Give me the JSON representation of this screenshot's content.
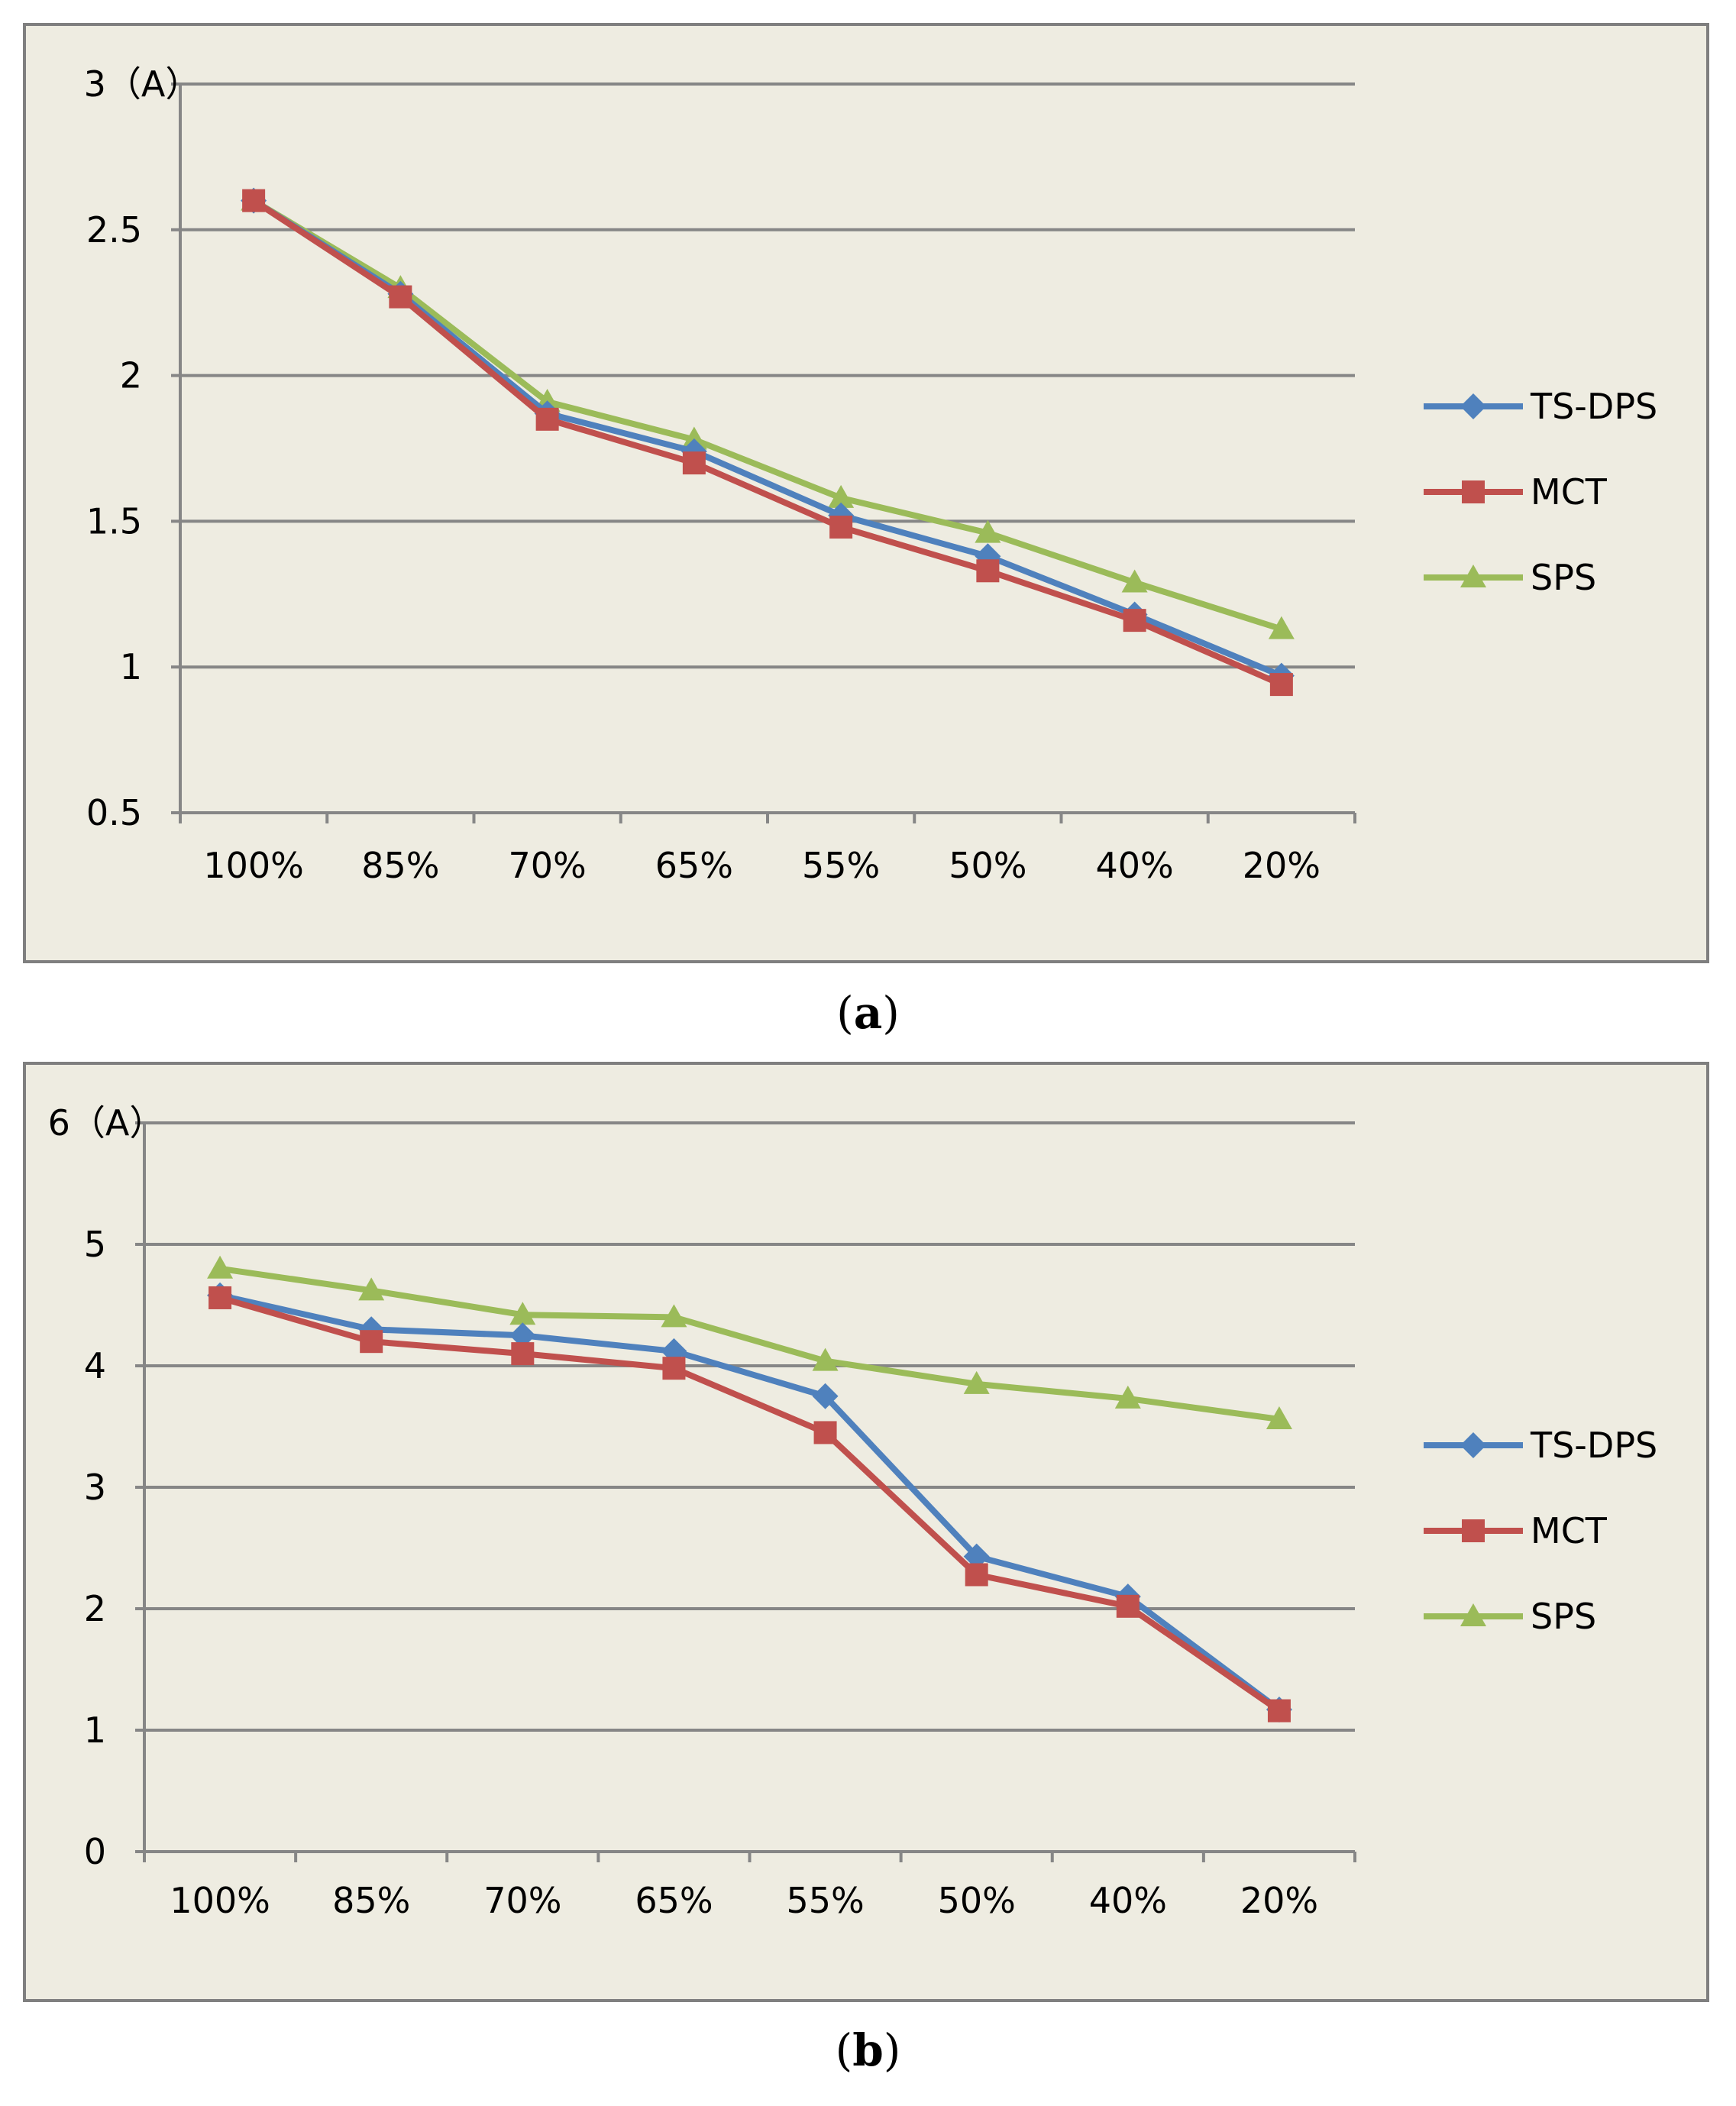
{
  "figure": {
    "panels": [
      {
        "caption_label": "a",
        "y_unit_label": "3（A）",
        "chart_data": {
          "type": "line",
          "categories": [
            "100%",
            "85%",
            "70%",
            "65%",
            "55%",
            "50%",
            "40%",
            "20%"
          ],
          "ylim": [
            0.5,
            3
          ],
          "yticks": [
            0.5,
            1,
            1.5,
            2,
            2.5
          ],
          "ytick_labels": [
            "0.5",
            "1",
            "1.5",
            "2",
            "2.5"
          ],
          "grid": true,
          "legend_position": "right",
          "series": [
            {
              "name": "TS-DPS",
              "color": "#4f81bd",
              "marker": "diamond",
              "values": [
                2.6,
                2.28,
                1.87,
                1.74,
                1.52,
                1.38,
                1.18,
                0.97
              ]
            },
            {
              "name": "MCT",
              "color": "#c0504d",
              "marker": "square",
              "values": [
                2.6,
                2.27,
                1.85,
                1.7,
                1.48,
                1.33,
                1.16,
                0.94
              ]
            },
            {
              "name": "SPS",
              "color": "#9bbb59",
              "marker": "triangle",
              "values": [
                2.6,
                2.3,
                1.91,
                1.78,
                1.58,
                1.46,
                1.29,
                1.13
              ]
            }
          ]
        }
      },
      {
        "caption_label": "b",
        "y_unit_label": "6（A）",
        "chart_data": {
          "type": "line",
          "categories": [
            "100%",
            "85%",
            "70%",
            "65%",
            "55%",
            "50%",
            "40%",
            "20%"
          ],
          "ylim": [
            0,
            6
          ],
          "yticks": [
            0,
            1,
            2,
            3,
            4,
            5
          ],
          "ytick_labels": [
            "0",
            "1",
            "2",
            "3",
            "4",
            "5"
          ],
          "grid": true,
          "legend_position": "right",
          "series": [
            {
              "name": "TS-DPS",
              "color": "#4f81bd",
              "marker": "diamond",
              "values": [
                4.58,
                4.3,
                4.25,
                4.12,
                3.75,
                2.43,
                2.1,
                1.17
              ]
            },
            {
              "name": "MCT",
              "color": "#c0504d",
              "marker": "square",
              "values": [
                4.56,
                4.2,
                4.1,
                3.98,
                3.45,
                2.28,
                2.02,
                1.16
              ]
            },
            {
              "name": "SPS",
              "color": "#9bbb59",
              "marker": "triangle",
              "values": [
                4.8,
                4.62,
                4.42,
                4.4,
                4.04,
                3.85,
                3.73,
                3.56
              ]
            }
          ]
        }
      }
    ]
  }
}
